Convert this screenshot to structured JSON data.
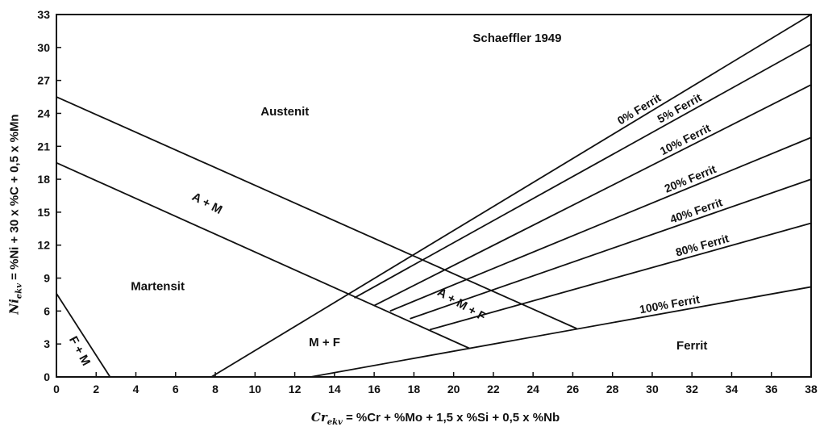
{
  "chart_data": {
    "type": "line",
    "title": "Schaeffler 1949",
    "xlabel": {
      "var": "Cr",
      "sub": "ekv",
      "rest": " = %Cr + %Mo + 1,5 x %Si + 0,5 x %Nb"
    },
    "ylabel": {
      "var": "Ni",
      "sub": "ekv",
      "rest": " = %Ni + 30 x %C + 0,5 x %Mn"
    },
    "xlim": [
      0,
      38
    ],
    "ylim": [
      0,
      33
    ],
    "xticks": [
      0,
      2,
      4,
      6,
      8,
      10,
      12,
      14,
      16,
      18,
      20,
      22,
      24,
      26,
      28,
      30,
      32,
      34,
      36,
      38
    ],
    "yticks": [
      0,
      3,
      6,
      9,
      12,
      15,
      18,
      21,
      24,
      27,
      30,
      33
    ],
    "grid": false,
    "ferrite_lines": [
      {
        "name": "0% Ferrit",
        "x": [
          7.8,
          38
        ],
        "y": [
          0,
          33
        ]
      },
      {
        "name": "5% Ferrit",
        "x": [
          15.0,
          38
        ],
        "y": [
          7.2,
          30.3
        ]
      },
      {
        "name": "10% Ferrit",
        "x": [
          16.0,
          38
        ],
        "y": [
          6.5,
          26.6
        ]
      },
      {
        "name": "20% Ferrit",
        "x": [
          16.8,
          38
        ],
        "y": [
          6.0,
          21.8
        ]
      },
      {
        "name": "40% Ferrit",
        "x": [
          17.8,
          38
        ],
        "y": [
          5.3,
          18.0
        ]
      },
      {
        "name": "80% Ferrit",
        "x": [
          18.8,
          38
        ],
        "y": [
          4.3,
          14.0
        ]
      },
      {
        "name": "100% Ferrit",
        "x": [
          12.8,
          38
        ],
        "y": [
          0,
          8.2
        ]
      }
    ],
    "boundary_lines": [
      {
        "x": [
          0,
          26.2
        ],
        "y": [
          25.5,
          4.4
        ]
      },
      {
        "x": [
          0,
          20.8
        ],
        "y": [
          19.5,
          2.6
        ]
      },
      {
        "x": [
          0,
          2.7
        ],
        "y": [
          7.6,
          0
        ]
      }
    ],
    "regions": [
      {
        "label": "Austenit",
        "x": 11.5,
        "y": 23.8
      },
      {
        "label": "Martensit",
        "x": 5.1,
        "y": 7.9
      },
      {
        "label": "M + F",
        "x": 13.5,
        "y": 2.8
      },
      {
        "label": "Ferrit",
        "x": 32.0,
        "y": 2.5
      },
      {
        "label": "A + M",
        "x": 7.5,
        "y": 15.5,
        "angle": 28
      },
      {
        "label": "A + M + F",
        "x": 20.3,
        "y": 6.3,
        "angle": 30
      },
      {
        "label": "F + M",
        "x": 1.0,
        "y": 2.2,
        "angle": 62
      }
    ]
  }
}
